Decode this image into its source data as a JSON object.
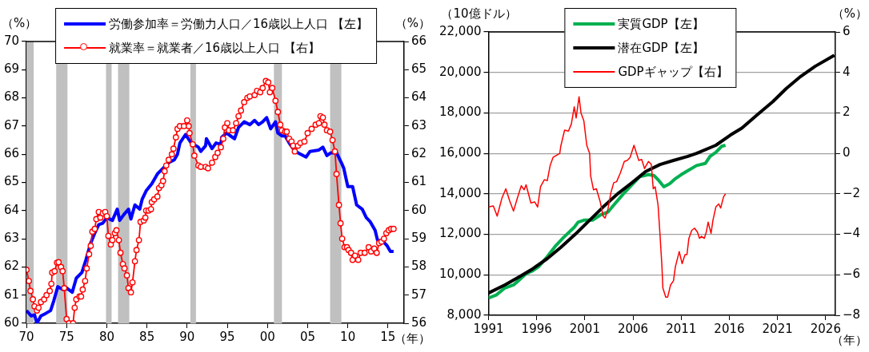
{
  "chart_data": [
    {
      "type": "line",
      "ylabel": "（%）",
      "y2label": "（%）",
      "xlabel": "（年）",
      "legend": "top",
      "grid": false,
      "xlim": [
        1970,
        2017
      ],
      "xticks": [
        {
          "value": 1970,
          "label": "70"
        },
        {
          "value": 1975,
          "label": "75"
        },
        {
          "value": 1980,
          "label": "80"
        },
        {
          "value": 1985,
          "label": "85"
        },
        {
          "value": 1990,
          "label": "90"
        },
        {
          "value": 1995,
          "label": "95"
        },
        {
          "value": 2000,
          "label": "00"
        },
        {
          "value": 2005,
          "label": "05"
        },
        {
          "value": 2010,
          "label": "10"
        },
        {
          "value": 2015,
          "label": "15"
        }
      ],
      "ylim": [
        60,
        70
      ],
      "yticks": [
        60,
        61,
        62,
        63,
        64,
        65,
        66,
        67,
        68,
        69,
        70
      ],
      "y2lim": [
        56,
        66
      ],
      "y2ticks": [
        56,
        57,
        58,
        59,
        60,
        61,
        62,
        63,
        64,
        65,
        66
      ],
      "bands": [
        {
          "axis": "x",
          "from": 1970.0,
          "to": 1970.9,
          "color": "#c0c0c0"
        },
        {
          "axis": "x",
          "from": 1973.7,
          "to": 1975.1,
          "color": "#c0c0c0"
        },
        {
          "axis": "x",
          "from": 1979.9,
          "to": 1980.6,
          "color": "#c0c0c0"
        },
        {
          "axis": "x",
          "from": 1981.4,
          "to": 1982.8,
          "color": "#c0c0c0"
        },
        {
          "axis": "x",
          "from": 1990.4,
          "to": 1991.1,
          "color": "#c0c0c0"
        },
        {
          "axis": "x",
          "from": 2000.8,
          "to": 2001.8,
          "color": "#c0c0c0"
        },
        {
          "axis": "x",
          "from": 2007.8,
          "to": 2009.2,
          "color": "#c0c0c0"
        }
      ],
      "series": [
        {
          "name": "労働参加率＝労働力人口／16歳以上人口 【左】",
          "color": "#0000ff",
          "marker": "none",
          "x": [
            1970.0,
            1970.6,
            1971.0,
            1971.3,
            1971.8,
            1972.4,
            1973.0,
            1973.4,
            1973.9,
            1974.5,
            1975.0,
            1975.7,
            1976.2,
            1976.9,
            1977.4,
            1978.0,
            1978.5,
            1979.0,
            1979.5,
            1980.0,
            1980.7,
            1981.3,
            1981.6,
            1982.1,
            1982.7,
            1983.0,
            1983.5,
            1984.1,
            1984.4,
            1984.9,
            1985.6,
            1986.3,
            1987.0,
            1987.7,
            1988.4,
            1988.8,
            1989.1,
            1989.8,
            1990.5,
            1991.4,
            1991.7,
            1992.3,
            1992.4,
            1993.1,
            1993.6,
            1994.2,
            1994.3,
            1994.9,
            1995.4,
            1995.9,
            1996.4,
            1997.1,
            1997.8,
            1998.4,
            1998.9,
            1999.4,
            1999.9,
            2000.4,
            2001.0,
            2001.3,
            2001.8,
            2002.2,
            2002.7,
            2003.2,
            2003.8,
            2004.8,
            2005.3,
            2006.4,
            2006.9,
            2007.4,
            2007.9,
            2008.6,
            2009.2,
            2009.5,
            2010.0,
            2010.6,
            2011.1,
            2011.8,
            2012.3,
            2012.8,
            2013.4,
            2013.7,
            2014.4,
            2014.9,
            2015.3,
            2015.7
          ],
          "values": [
            60.45,
            60.26,
            60.3,
            60.0,
            60.26,
            60.35,
            60.45,
            60.8,
            61.3,
            61.2,
            61.25,
            61.1,
            61.6,
            61.8,
            62.25,
            62.85,
            63.2,
            63.5,
            63.55,
            63.75,
            63.65,
            64.05,
            63.65,
            63.85,
            64.05,
            63.7,
            64.2,
            64.05,
            64.4,
            64.7,
            64.95,
            65.3,
            65.5,
            65.7,
            65.8,
            66.0,
            66.4,
            66.7,
            66.4,
            66.25,
            66.1,
            66.3,
            66.55,
            66.2,
            66.4,
            66.35,
            66.6,
            66.75,
            66.65,
            66.55,
            66.95,
            67.15,
            67.05,
            67.2,
            67.05,
            67.15,
            67.3,
            66.9,
            67.15,
            66.75,
            66.65,
            66.65,
            66.4,
            66.2,
            66.05,
            65.9,
            66.1,
            66.15,
            66.25,
            65.95,
            66.05,
            66.05,
            65.7,
            65.5,
            64.85,
            64.85,
            64.2,
            64.05,
            63.75,
            63.6,
            63.3,
            62.95,
            62.9,
            62.75,
            62.55,
            62.55
          ]
        },
        {
          "name": "就業率＝就業者／16歳以上人口 【右】",
          "color": "#ff0000",
          "marker": "circle",
          "axis": "y2",
          "x": [
            1970.0,
            1970.3,
            1970.5,
            1970.8,
            1971.0,
            1971.3,
            1971.5,
            1971.8,
            1972.2,
            1972.5,
            1972.9,
            1973.1,
            1973.2,
            1973.5,
            1973.8,
            1974.0,
            1974.3,
            1974.5,
            1974.7,
            1975.0,
            1975.3,
            1975.8,
            1976.0,
            1976.2,
            1976.6,
            1976.8,
            1977.0,
            1977.3,
            1977.5,
            1977.8,
            1978.0,
            1978.2,
            1978.5,
            1978.7,
            1979.0,
            1979.2,
            1979.5,
            1979.8,
            1980.0,
            1980.2,
            1980.5,
            1980.7,
            1981.0,
            1981.2,
            1981.5,
            1981.7,
            1982.0,
            1982.2,
            1982.5,
            1982.7,
            1983.0,
            1983.2,
            1983.5,
            1983.7,
            1984.0,
            1984.2,
            1984.6,
            1984.8,
            1984.9,
            1985.2,
            1985.5,
            1985.6,
            1985.9,
            1986.3,
            1986.5,
            1986.8,
            1987.0,
            1987.2,
            1987.4,
            1987.7,
            1988.1,
            1988.3,
            1988.6,
            1988.8,
            1989.1,
            1989.6,
            1990.0,
            1990.2,
            1990.3,
            1990.7,
            1990.9,
            1991.4,
            1991.7,
            1992.3,
            1992.6,
            1993.1,
            1993.5,
            1993.8,
            1994.2,
            1994.5,
            1994.7,
            1995.0,
            1995.2,
            1995.7,
            1996.1,
            1996.4,
            1996.7,
            1997.1,
            1997.5,
            1997.8,
            1998.4,
            1998.7,
            1999.1,
            1999.4,
            1999.8,
            2000.1,
            2000.3,
            2000.6,
            2001.0,
            2001.3,
            2001.6,
            2001.8,
            2002.2,
            2002.4,
            2002.7,
            2003.0,
            2003.2,
            2003.4,
            2003.8,
            2004.1,
            2004.6,
            2005.0,
            2005.5,
            2006.0,
            2006.4,
            2006.6,
            2006.9,
            2007.1,
            2007.4,
            2007.8,
            2008.1,
            2008.4,
            2008.6,
            2008.9,
            2009.1,
            2009.3,
            2009.6,
            2009.9,
            2010.1,
            2010.4,
            2010.6,
            2010.9,
            2011.3,
            2011.6,
            2012.1,
            2012.6,
            2012.9,
            2013.3,
            2013.6,
            2013.9,
            2014.2,
            2014.5,
            2014.8,
            2015.1,
            2015.4,
            2015.7
          ],
          "values": [
            57.9,
            57.5,
            57.15,
            56.85,
            56.6,
            56.45,
            56.55,
            56.75,
            56.85,
            57.0,
            57.15,
            57.4,
            57.8,
            57.85,
            58.15,
            58.17,
            58.0,
            57.85,
            57.25,
            56.15,
            56.0,
            56.0,
            56.55,
            56.85,
            56.95,
            56.95,
            57.2,
            57.5,
            57.95,
            58.45,
            58.75,
            59.25,
            59.35,
            59.7,
            59.95,
            59.75,
            59.9,
            59.95,
            59.8,
            59.1,
            58.8,
            58.95,
            59.2,
            59.3,
            58.95,
            58.5,
            58.1,
            57.95,
            57.7,
            57.25,
            57.1,
            57.45,
            58.2,
            58.6,
            58.95,
            59.6,
            59.65,
            59.75,
            60.0,
            60.0,
            60.05,
            60.3,
            60.4,
            60.5,
            60.8,
            60.9,
            61.05,
            61.4,
            61.6,
            61.8,
            62.0,
            62.2,
            62.6,
            62.9,
            63.0,
            63.0,
            63.2,
            63.0,
            62.75,
            62.35,
            61.95,
            61.6,
            61.55,
            61.55,
            61.5,
            61.7,
            61.9,
            62.05,
            62.25,
            62.55,
            62.95,
            63.1,
            62.85,
            62.85,
            63.1,
            63.35,
            63.55,
            63.85,
            64.0,
            64.05,
            64.1,
            64.25,
            64.2,
            64.35,
            64.6,
            64.55,
            64.2,
            64.35,
            63.9,
            63.5,
            63.05,
            62.85,
            62.8,
            62.8,
            62.55,
            62.45,
            62.3,
            62.1,
            62.3,
            62.4,
            62.45,
            62.75,
            62.9,
            63.05,
            63.1,
            63.35,
            63.3,
            63.05,
            62.85,
            62.8,
            62.5,
            62.1,
            61.3,
            60.2,
            59.55,
            59.0,
            58.7,
            58.7,
            58.6,
            58.5,
            58.25,
            58.4,
            58.25,
            58.5,
            58.5,
            58.7,
            58.55,
            58.65,
            58.5,
            58.85,
            58.9,
            59.0,
            59.2,
            59.3,
            59.35,
            59.35
          ]
        }
      ]
    },
    {
      "type": "line",
      "ylabel": "（10億ドル）",
      "y2label": "（%）",
      "xlabel": "（年）",
      "legend": "top",
      "grid": "y",
      "marker": "none",
      "xlim": [
        1991,
        2027
      ],
      "xticks": [
        1991,
        1996,
        2001,
        2006,
        2011,
        2016,
        2021,
        2026
      ],
      "ylim": [
        8000,
        22000
      ],
      "yticks": [
        {
          "value": 8000,
          "label": "8,000"
        },
        {
          "value": 10000,
          "label": "10,000"
        },
        {
          "value": 12000,
          "label": "12,000"
        },
        {
          "value": 14000,
          "label": "14,000"
        },
        {
          "value": 16000,
          "label": "16,000"
        },
        {
          "value": 18000,
          "label": "18,000"
        },
        {
          "value": 20000,
          "label": "20,000"
        },
        {
          "value": 22000,
          "label": "22,000"
        }
      ],
      "y2lim": [
        -8,
        6
      ],
      "y2ticks": [
        {
          "value": -8,
          "label": "−8"
        },
        {
          "value": -6,
          "label": "−6"
        },
        {
          "value": -4,
          "label": "−4"
        },
        {
          "value": -2,
          "label": "−2"
        },
        0,
        2,
        4,
        6
      ],
      "series": [
        {
          "name": "実質GDP【左】",
          "color": "#00b050",
          "x": [
            1991.0,
            1991.8,
            1992.7,
            1993.6,
            1994.2,
            1994.9,
            1995.6,
            1996.2,
            1997.1,
            1998.0,
            1998.8,
            1999.9,
            2000.3,
            2000.9,
            2001.8,
            2002.6,
            2003.4,
            2004.1,
            2005.0,
            2005.9,
            2006.7,
            2007.6,
            2008.2,
            2008.6,
            2009.2,
            2009.8,
            2010.4,
            2011.0,
            2011.7,
            2012.6,
            2013.5,
            2014.0,
            2014.6,
            2015.2,
            2015.6
          ],
          "values": [
            8850,
            9000,
            9350,
            9500,
            9750,
            10050,
            10200,
            10400,
            10900,
            11450,
            11850,
            12350,
            12600,
            12700,
            12700,
            12950,
            13100,
            13500,
            14000,
            14450,
            14850,
            14950,
            14900,
            14700,
            14350,
            14500,
            14750,
            14950,
            15150,
            15400,
            15500,
            15850,
            16050,
            16350,
            16400
          ]
        },
        {
          "name": "潜在GDP【左】",
          "color": "#000000",
          "x": [
            1991.0,
            1992.7,
            1994.2,
            1995.6,
            1997.1,
            1998.5,
            2000.0,
            2001.5,
            2002.9,
            2004.4,
            2005.9,
            2007.3,
            2008.8,
            2010.2,
            2011.7,
            2012.6,
            2014.6,
            2016.1,
            2017.3,
            2019.0,
            2020.5,
            2021.9,
            2023.4,
            2024.9,
            2026.9
          ],
          "values": [
            9100,
            9500,
            9900,
            10300,
            10800,
            11350,
            12000,
            12700,
            13350,
            14000,
            14550,
            15100,
            15450,
            15650,
            15850,
            16000,
            16400,
            16900,
            17250,
            17950,
            18550,
            19200,
            19800,
            20300,
            20850
          ]
        },
        {
          "name": "GDPギャップ【右】",
          "color": "#ff0000",
          "axis": "y2",
          "x": [
            1991.0,
            1991.5,
            1991.9,
            1992.4,
            1992.8,
            1993.2,
            1993.6,
            1994.0,
            1994.4,
            1994.7,
            1994.9,
            1995.4,
            1995.8,
            1996.1,
            1996.4,
            1996.8,
            1997.1,
            1997.4,
            1997.7,
            1998.4,
            1998.5,
            1998.9,
            1999.3,
            1999.6,
            1999.9,
            2000.1,
            2000.4,
            2000.6,
            2000.9,
            2001.2,
            2001.5,
            2001.6,
            2001.9,
            2002.2,
            2002.6,
            2002.9,
            2003.1,
            2003.4,
            2003.7,
            2004.0,
            2004.3,
            2004.7,
            2005.1,
            2005.4,
            2005.7,
            2006.1,
            2006.6,
            2006.9,
            2007.2,
            2007.6,
            2007.9,
            2008.1,
            2008.3,
            2008.6,
            2008.8,
            2009.0,
            2009.1,
            2009.4,
            2009.6,
            2009.9,
            2010.2,
            2010.4,
            2010.8,
            2011.1,
            2011.4,
            2011.6,
            2011.8,
            2012.1,
            2012.4,
            2012.7,
            2012.9,
            2013.1,
            2013.4,
            2013.6,
            2013.8,
            2014.1,
            2014.3,
            2014.6,
            2014.9,
            2015.1,
            2015.4,
            2015.6
          ],
          "values": [
            -2.65,
            -2.6,
            -3.1,
            -2.2,
            -1.75,
            -2.35,
            -2.85,
            -2.2,
            -1.6,
            -1.8,
            -1.55,
            -2.45,
            -2.4,
            -2.65,
            -1.65,
            -1.3,
            -1.35,
            -0.6,
            -0.2,
            0.0,
            0.35,
            1.15,
            1.1,
            1.45,
            2.3,
            1.75,
            2.8,
            2.0,
            1.6,
            0.4,
            0.0,
            -1.1,
            -1.8,
            -1.75,
            -2.4,
            -3.1,
            -3.2,
            -2.75,
            -1.95,
            -1.45,
            -1.4,
            -0.95,
            -0.4,
            -0.35,
            -0.2,
            0.4,
            -0.35,
            -0.3,
            -0.75,
            -0.4,
            -0.55,
            -1.75,
            -1.65,
            -2.55,
            -4.0,
            -5.55,
            -6.65,
            -7.1,
            -7.1,
            -6.5,
            -6.3,
            -5.6,
            -4.85,
            -5.45,
            -5.0,
            -5.0,
            -4.2,
            -3.8,
            -3.7,
            -3.9,
            -4.2,
            -4.1,
            -4.2,
            -3.9,
            -3.4,
            -3.95,
            -3.3,
            -2.65,
            -2.5,
            -2.7,
            -2.15,
            -2.0
          ]
        }
      ]
    }
  ]
}
